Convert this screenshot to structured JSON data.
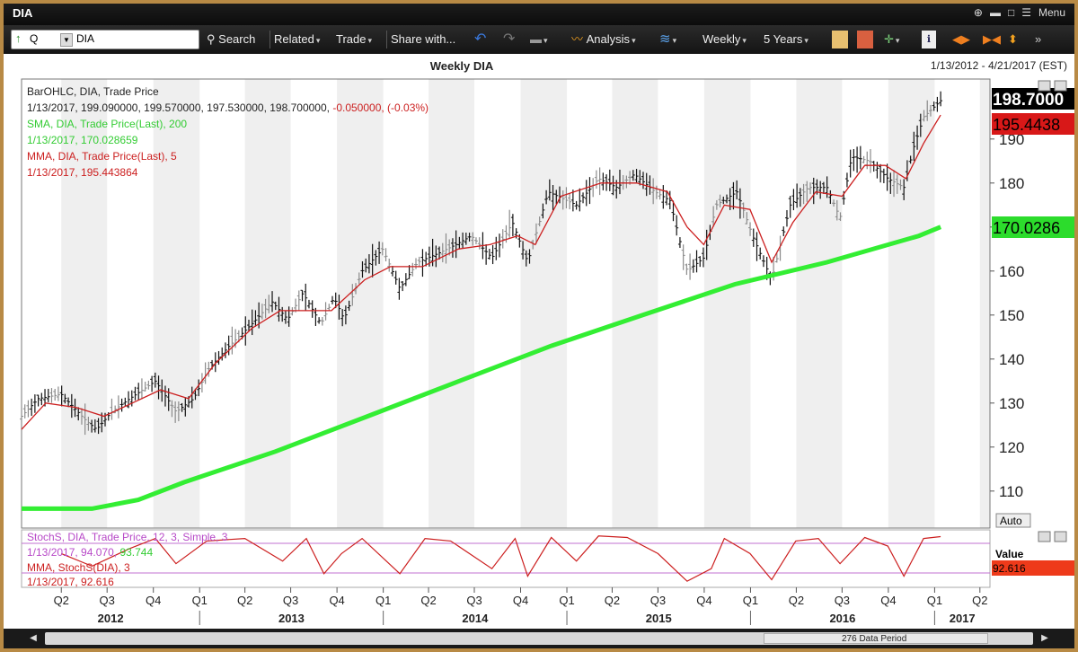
{
  "app": {
    "title": "DIA",
    "menu_label": "Menu"
  },
  "toolbar": {
    "symbol": "DIA",
    "search_label": "Search",
    "related_label": "Related",
    "trade_label": "Trade",
    "share_label": "Share with...",
    "analysis_label": "Analysis",
    "period_label": "Weekly",
    "range_label": "5 Years"
  },
  "chart": {
    "title": "Weekly DIA",
    "date_range": "1/13/2012 - 4/21/2017 (EST)",
    "auto_button": "Auto",
    "value_label": "Value",
    "data_period": "276 Data Period"
  },
  "legend": {
    "bar_title": "BarOHLC, DIA, Trade Price",
    "bar_values": "1/13/2017, 199.090000, 199.570000, 197.530000, 198.700000, ",
    "bar_change": "-0.050000, (-0.03%)",
    "sma_title": "SMA, DIA, Trade Price(Last), 200",
    "sma_value": "1/13/2017, 170.028659",
    "mma_title": "MMA, DIA, Trade Price(Last), 5",
    "mma_value": "1/13/2017, 195.443864",
    "stoch_title": "StochS, DIA, Trade Price, 12, 3, Simple, 3",
    "stoch_value_a": "1/13/2017, 94.070, ",
    "stoch_value_b": "93.744",
    "stoch_mma_title": "MMA, StochS(DIA), 3",
    "stoch_mma_value": "1/13/2017, 92.616"
  },
  "colors": {
    "sma": "#33ee33",
    "mma": "#cc1f1f",
    "stoch": "#b84ac8",
    "price_box": "#000000",
    "mma_box": "#d81818",
    "sma_box": "#2cdc2c",
    "value_box": "#ee3a1a"
  },
  "chart_data": {
    "type": "line",
    "y_axis": {
      "ylim": [
        102,
        202
      ],
      "ticks": [
        110,
        120,
        130,
        140,
        150,
        160,
        170,
        180,
        190
      ]
    },
    "x_axis": {
      "quarter_ticks": [
        "Q2",
        "Q3",
        "Q4",
        "Q1",
        "Q2",
        "Q3",
        "Q4",
        "Q1",
        "Q2",
        "Q3",
        "Q4",
        "Q1",
        "Q2",
        "Q3",
        "Q4",
        "Q1",
        "Q2",
        "Q3",
        "Q4",
        "Q1",
        "Q2"
      ],
      "year_labels": [
        "2012",
        "2013",
        "2014",
        "2015",
        "2016",
        "2017"
      ]
    },
    "last_values": {
      "price": "198.7000",
      "mma": "195.4438",
      "sma": "170.0286",
      "stoch_mma": "92.616"
    },
    "price_series": {
      "name": "BarOHLC DIA (approx. weekly close)",
      "points": [
        [
          "2012-01-13",
          127
        ],
        [
          "2012-02-15",
          131
        ],
        [
          "2012-04-01",
          132
        ],
        [
          "2012-05-20",
          126
        ],
        [
          "2012-06-10",
          124
        ],
        [
          "2012-07-10",
          128
        ],
        [
          "2012-08-15",
          131
        ],
        [
          "2012-10-05",
          135
        ],
        [
          "2012-11-15",
          128
        ],
        [
          "2012-12-20",
          131
        ],
        [
          "2013-01-20",
          138
        ],
        [
          "2013-03-01",
          143
        ],
        [
          "2013-04-15",
          148
        ],
        [
          "2013-05-25",
          153
        ],
        [
          "2013-06-25",
          149
        ],
        [
          "2013-07-25",
          155
        ],
        [
          "2013-08-30",
          148
        ],
        [
          "2013-09-25",
          154
        ],
        [
          "2013-10-15",
          149
        ],
        [
          "2013-11-20",
          160
        ],
        [
          "2013-12-31",
          165
        ],
        [
          "2014-02-03",
          156
        ],
        [
          "2014-03-10",
          162
        ],
        [
          "2014-04-20",
          164
        ],
        [
          "2014-05-25",
          166
        ],
        [
          "2014-06-25",
          168
        ],
        [
          "2014-08-05",
          163
        ],
        [
          "2014-09-15",
          171
        ],
        [
          "2014-10-15",
          162
        ],
        [
          "2014-11-25",
          178
        ],
        [
          "2015-01-20",
          175
        ],
        [
          "2015-03-05",
          181
        ],
        [
          "2015-04-10",
          179
        ],
        [
          "2015-05-15",
          182
        ],
        [
          "2015-06-25",
          178
        ],
        [
          "2015-07-25",
          176
        ],
        [
          "2015-08-28",
          160
        ],
        [
          "2015-09-30",
          163
        ],
        [
          "2015-10-25",
          175
        ],
        [
          "2015-12-05",
          178
        ],
        [
          "2016-01-05",
          168
        ],
        [
          "2016-02-12",
          158
        ],
        [
          "2016-03-20",
          175
        ],
        [
          "2016-04-25",
          179
        ],
        [
          "2016-06-01",
          179
        ],
        [
          "2016-06-27",
          172
        ],
        [
          "2016-07-20",
          186
        ],
        [
          "2016-08-25",
          185
        ],
        [
          "2016-09-30",
          181
        ],
        [
          "2016-11-01",
          179
        ],
        [
          "2016-11-20",
          188
        ],
        [
          "2016-12-10",
          195
        ],
        [
          "2017-01-13",
          198.7
        ]
      ]
    },
    "mma_series": {
      "name": "MMA(5)",
      "points": [
        [
          "2012-01-13",
          124
        ],
        [
          "2012-03-01",
          130
        ],
        [
          "2012-05-01",
          129
        ],
        [
          "2012-06-25",
          127
        ],
        [
          "2012-08-20",
          130
        ],
        [
          "2012-10-15",
          133
        ],
        [
          "2012-12-10",
          131
        ],
        [
          "2013-02-01",
          139
        ],
        [
          "2013-04-15",
          147
        ],
        [
          "2013-06-10",
          151
        ],
        [
          "2013-08-01",
          151
        ],
        [
          "2013-09-20",
          151
        ],
        [
          "2013-11-25",
          158
        ],
        [
          "2014-01-15",
          161
        ],
        [
          "2014-03-20",
          161
        ],
        [
          "2014-05-30",
          165
        ],
        [
          "2014-08-01",
          166
        ],
        [
          "2014-09-25",
          168
        ],
        [
          "2014-10-30",
          166
        ],
        [
          "2014-12-20",
          177
        ],
        [
          "2015-03-10",
          180
        ],
        [
          "2015-05-20",
          180
        ],
        [
          "2015-07-20",
          178
        ],
        [
          "2015-08-28",
          170
        ],
        [
          "2015-09-30",
          166
        ],
        [
          "2015-11-10",
          175
        ],
        [
          "2015-12-31",
          174
        ],
        [
          "2016-02-12",
          162
        ],
        [
          "2016-03-25",
          171
        ],
        [
          "2016-05-10",
          178
        ],
        [
          "2016-07-01",
          177
        ],
        [
          "2016-08-15",
          184
        ],
        [
          "2016-09-25",
          184
        ],
        [
          "2016-11-05",
          181
        ],
        [
          "2016-12-10",
          189
        ],
        [
          "2017-01-13",
          195.44
        ]
      ]
    },
    "sma_series": {
      "name": "SMA(200)",
      "points": [
        [
          "2012-01-13",
          106
        ],
        [
          "2012-06-01",
          106
        ],
        [
          "2012-09-01",
          108
        ],
        [
          "2012-12-01",
          112
        ],
        [
          "2013-06-01",
          119
        ],
        [
          "2013-12-01",
          127
        ],
        [
          "2014-06-01",
          135
        ],
        [
          "2014-12-01",
          143
        ],
        [
          "2015-06-01",
          150
        ],
        [
          "2015-12-01",
          157
        ],
        [
          "2016-06-01",
          162
        ],
        [
          "2016-12-01",
          168
        ],
        [
          "2017-01-13",
          170.03
        ]
      ]
    },
    "stoch_series": {
      "name": "StochS(12,3,3)",
      "ylim": [
        0,
        100
      ],
      "points": [
        [
          "2012-04-01",
          60
        ],
        [
          "2012-06-01",
          35
        ],
        [
          "2012-08-15",
          70
        ],
        [
          "2012-10-05",
          90
        ],
        [
          "2012-11-15",
          40
        ],
        [
          "2013-01-15",
          85
        ],
        [
          "2013-04-01",
          90
        ],
        [
          "2013-06-15",
          45
        ],
        [
          "2013-08-01",
          90
        ],
        [
          "2013-09-05",
          20
        ],
        [
          "2013-10-10",
          60
        ],
        [
          "2013-11-20",
          90
        ],
        [
          "2014-02-03",
          20
        ],
        [
          "2014-03-25",
          90
        ],
        [
          "2014-05-15",
          85
        ],
        [
          "2014-08-05",
          30
        ],
        [
          "2014-09-20",
          90
        ],
        [
          "2014-10-15",
          15
        ],
        [
          "2014-12-01",
          92
        ],
        [
          "2015-01-20",
          45
        ],
        [
          "2015-03-05",
          95
        ],
        [
          "2015-05-01",
          92
        ],
        [
          "2015-07-01",
          60
        ],
        [
          "2015-08-28",
          5
        ],
        [
          "2015-10-15",
          30
        ],
        [
          "2015-11-10",
          90
        ],
        [
          "2015-12-31",
          60
        ],
        [
          "2016-02-12",
          8
        ],
        [
          "2016-03-31",
          85
        ],
        [
          "2016-05-15",
          90
        ],
        [
          "2016-06-27",
          40
        ],
        [
          "2016-08-15",
          92
        ],
        [
          "2016-09-30",
          75
        ],
        [
          "2016-11-01",
          15
        ],
        [
          "2016-12-10",
          90
        ],
        [
          "2017-01-13",
          93.7
        ]
      ]
    }
  }
}
